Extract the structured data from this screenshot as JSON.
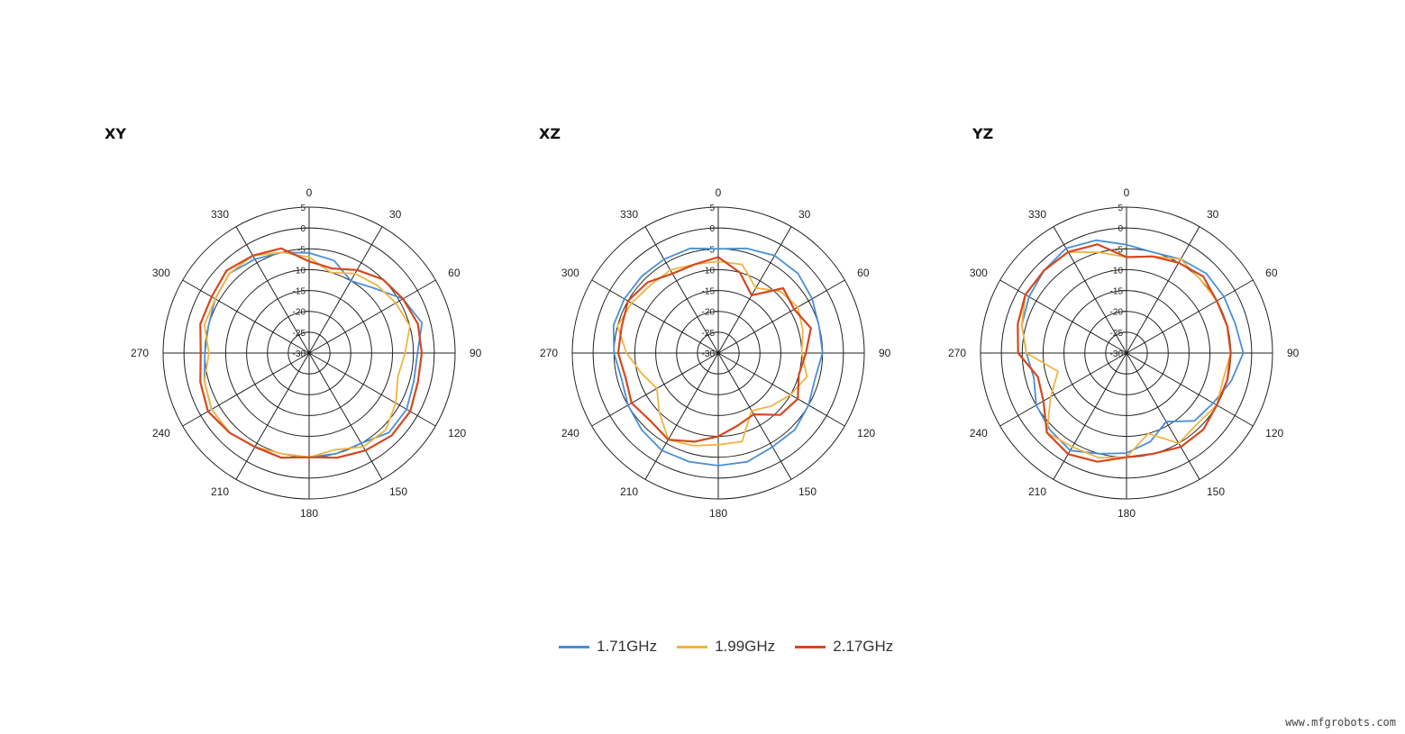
{
  "chart_data": [
    {
      "type": "polar-line",
      "title": "XY",
      "r_ticks": [
        5,
        0,
        -5,
        -10,
        -15,
        -20,
        -25,
        -30
      ],
      "r_range": [
        -30,
        5
      ],
      "angle_labels": [
        "0",
        "30",
        "60",
        "90",
        "120",
        "150",
        "180",
        "210",
        "240",
        "270",
        "300",
        "330"
      ],
      "angles": [
        0,
        15,
        30,
        45,
        60,
        75,
        90,
        105,
        120,
        135,
        150,
        165,
        180,
        195,
        210,
        225,
        240,
        255,
        270,
        285,
        300,
        315,
        330,
        345
      ],
      "series": [
        {
          "name": "1.71GHz",
          "values": [
            -6,
            -7,
            -10,
            -8,
            -4,
            -2,
            -4,
            -4,
            -3,
            -3,
            -5,
            -5,
            -5,
            -4,
            -4,
            -3,
            -3,
            -4,
            -5,
            -5,
            -4,
            -3,
            -4,
            -5
          ]
        },
        {
          "name": "1.99GHz",
          "values": [
            -7,
            -10,
            -8,
            -7,
            -6,
            -5,
            -7,
            -8,
            -6,
            -4,
            -4,
            -6,
            -5,
            -5,
            -4,
            -3,
            -3,
            -4,
            -6,
            -4,
            -4,
            -3,
            -3,
            -5
          ]
        },
        {
          "name": "2.17GHz",
          "values": [
            -8,
            -9,
            -7,
            -5,
            -4,
            -3,
            -3,
            -3,
            -2,
            -2,
            -3,
            -4,
            -5,
            -4,
            -4,
            -3,
            -2,
            -3,
            -4,
            -3,
            -3,
            -2,
            -3,
            -4
          ]
        }
      ]
    },
    {
      "type": "polar-line",
      "title": "XZ",
      "r_ticks": [
        5,
        0,
        -5,
        -10,
        -15,
        -20,
        -25,
        -30
      ],
      "r_range": [
        -30,
        5
      ],
      "angle_labels": [
        "0",
        "30",
        "60",
        "90",
        "120",
        "150",
        "180",
        "210",
        "240",
        "270",
        "300",
        "330"
      ],
      "angles": [
        0,
        15,
        30,
        45,
        60,
        75,
        90,
        105,
        120,
        135,
        150,
        165,
        180,
        195,
        210,
        225,
        240,
        255,
        270,
        285,
        300,
        315,
        330,
        345
      ],
      "series": [
        {
          "name": "1.71GHz",
          "values": [
            -5,
            -4,
            -3,
            -3,
            -4,
            -5,
            -5,
            -6,
            -5,
            -4,
            -4,
            -3,
            -3,
            -3,
            -3,
            -4,
            -5,
            -6,
            -5,
            -4,
            -4,
            -4,
            -4,
            -4
          ]
        },
        {
          "name": "1.99GHz",
          "values": [
            -8,
            -8,
            -12,
            -9,
            -8,
            -9,
            -10,
            -8,
            -10,
            -12,
            -14,
            -8,
            -8,
            -7,
            -6,
            -10,
            -13,
            -11,
            -8,
            -5,
            -6,
            -7,
            -7,
            -8
          ]
        },
        {
          "name": "2.17GHz",
          "values": [
            -7,
            -10,
            -14,
            -8,
            -9,
            -7,
            -9,
            -10,
            -8,
            -9,
            -13,
            -12,
            -10,
            -8,
            -6,
            -7,
            -6,
            -7,
            -6,
            -6,
            -5,
            -6,
            -8,
            -8
          ]
        }
      ]
    },
    {
      "type": "polar-line",
      "title": "YZ",
      "r_ticks": [
        5,
        0,
        -5,
        -10,
        -15,
        -20,
        -25,
        -30
      ],
      "r_range": [
        -30,
        5
      ],
      "angle_labels": [
        "0",
        "30",
        "60",
        "90",
        "120",
        "150",
        "180",
        "210",
        "240",
        "270",
        "300",
        "330"
      ],
      "angles": [
        0,
        15,
        30,
        45,
        60,
        75,
        90,
        105,
        120,
        135,
        150,
        165,
        180,
        195,
        210,
        225,
        240,
        255,
        270,
        285,
        300,
        315,
        330,
        345
      ],
      "series": [
        {
          "name": "1.71GHz",
          "values": [
            -4,
            -5,
            -4,
            -3,
            -3,
            -3,
            -2,
            -4,
            -6,
            -7,
            -11,
            -8,
            -6,
            -5,
            -3,
            -4,
            -5,
            -7,
            -6,
            -4,
            -3,
            -2,
            -1,
            -2
          ]
        },
        {
          "name": "1.99GHz",
          "values": [
            -7,
            -6,
            -4,
            -5,
            -5,
            -5,
            -5,
            -6,
            -5,
            -6,
            -5,
            -10,
            -5,
            -4,
            -4,
            -3,
            -9,
            -13,
            -6,
            -4,
            -2,
            -2,
            -2,
            -5
          ]
        },
        {
          "name": "2.17GHz",
          "values": [
            -7,
            -6,
            -5,
            -4,
            -5,
            -5,
            -5,
            -5,
            -5,
            -4,
            -4,
            -5,
            -5,
            -3,
            -2,
            -3,
            -7,
            -8,
            -4,
            -3,
            -2,
            -2,
            -2,
            -3
          ]
        }
      ]
    }
  ],
  "legend": {
    "items": [
      {
        "label": "1.71GHz",
        "color": "#4a8fd6"
      },
      {
        "label": "1.99GHz",
        "color": "#f0b443"
      },
      {
        "label": "2.17GHz",
        "color": "#d5481d"
      }
    ]
  },
  "watermark": "www.mfgrobots.com"
}
